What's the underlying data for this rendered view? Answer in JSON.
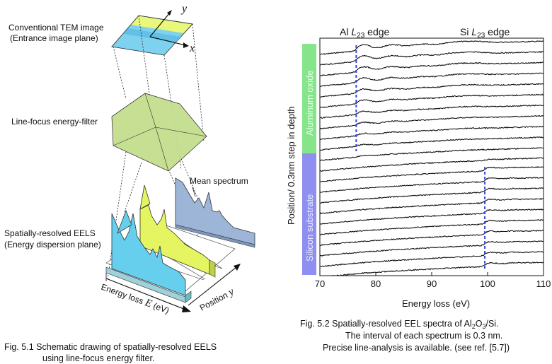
{
  "left_figure": {
    "labels": {
      "tem_line1": "Conventional TEM image",
      "tem_line2": "(Entrance image plane)",
      "filter": "Line-focus energy-filter",
      "eels_line1": "Spatially-resolved EELS",
      "eels_line2": "(Energy dispersion plane)",
      "mean_spectrum": "Mean spectrum",
      "axis_x": "x",
      "axis_y": "y",
      "energy_loss_text": "Energy loss ",
      "energy_loss_var": "E",
      "energy_loss_unit": " (eV)",
      "position_text": "Position ",
      "position_var": "y"
    },
    "caption_line1": "Fig. 5.1 Schematic drawing of spatially-resolved EELS",
    "caption_line2": "using line-focus energy filter."
  },
  "right_figure": {
    "edge_labels": {
      "al_prefix": "Al ",
      "al_L": "L",
      "al_sub": "23",
      "al_suffix": " edge",
      "si_prefix": "Si ",
      "si_L": "L",
      "si_sub": "23",
      "si_suffix": " edge"
    },
    "band_labels": {
      "aluminum": "Aluminum oxide",
      "silicon": "Silicon substrate"
    },
    "caption_line1_pre": "Fig. 5.2  Spatially-resolved EEL spectra of Al",
    "caption_sub1": "2",
    "caption_mid": "O",
    "caption_sub2": "3",
    "caption_line1_post": "/Si.",
    "caption_line2": "The interval of each spectrum is 0.3 nm.",
    "caption_line3": "Precise line-analysis is available. (see ref. [5.7])"
  },
  "chart_data": {
    "type": "line",
    "xlabel": "Energy loss (eV)",
    "ylabel": "Position/ 0.3nm step in depth",
    "xlim": [
      70,
      110
    ],
    "xticks": [
      70,
      80,
      90,
      100,
      110
    ],
    "grid": false,
    "n_spectra": 22,
    "aluminum_oxide_spectra": 11,
    "silicon_substrate_spectra": 11,
    "al_edge_ev": 76.5,
    "si_edge_ev": 99.5,
    "colors": {
      "aluminum_band": "#86e58a",
      "silicon_band": "#8e8ff0",
      "edge_marker": "#3b47d6"
    }
  }
}
